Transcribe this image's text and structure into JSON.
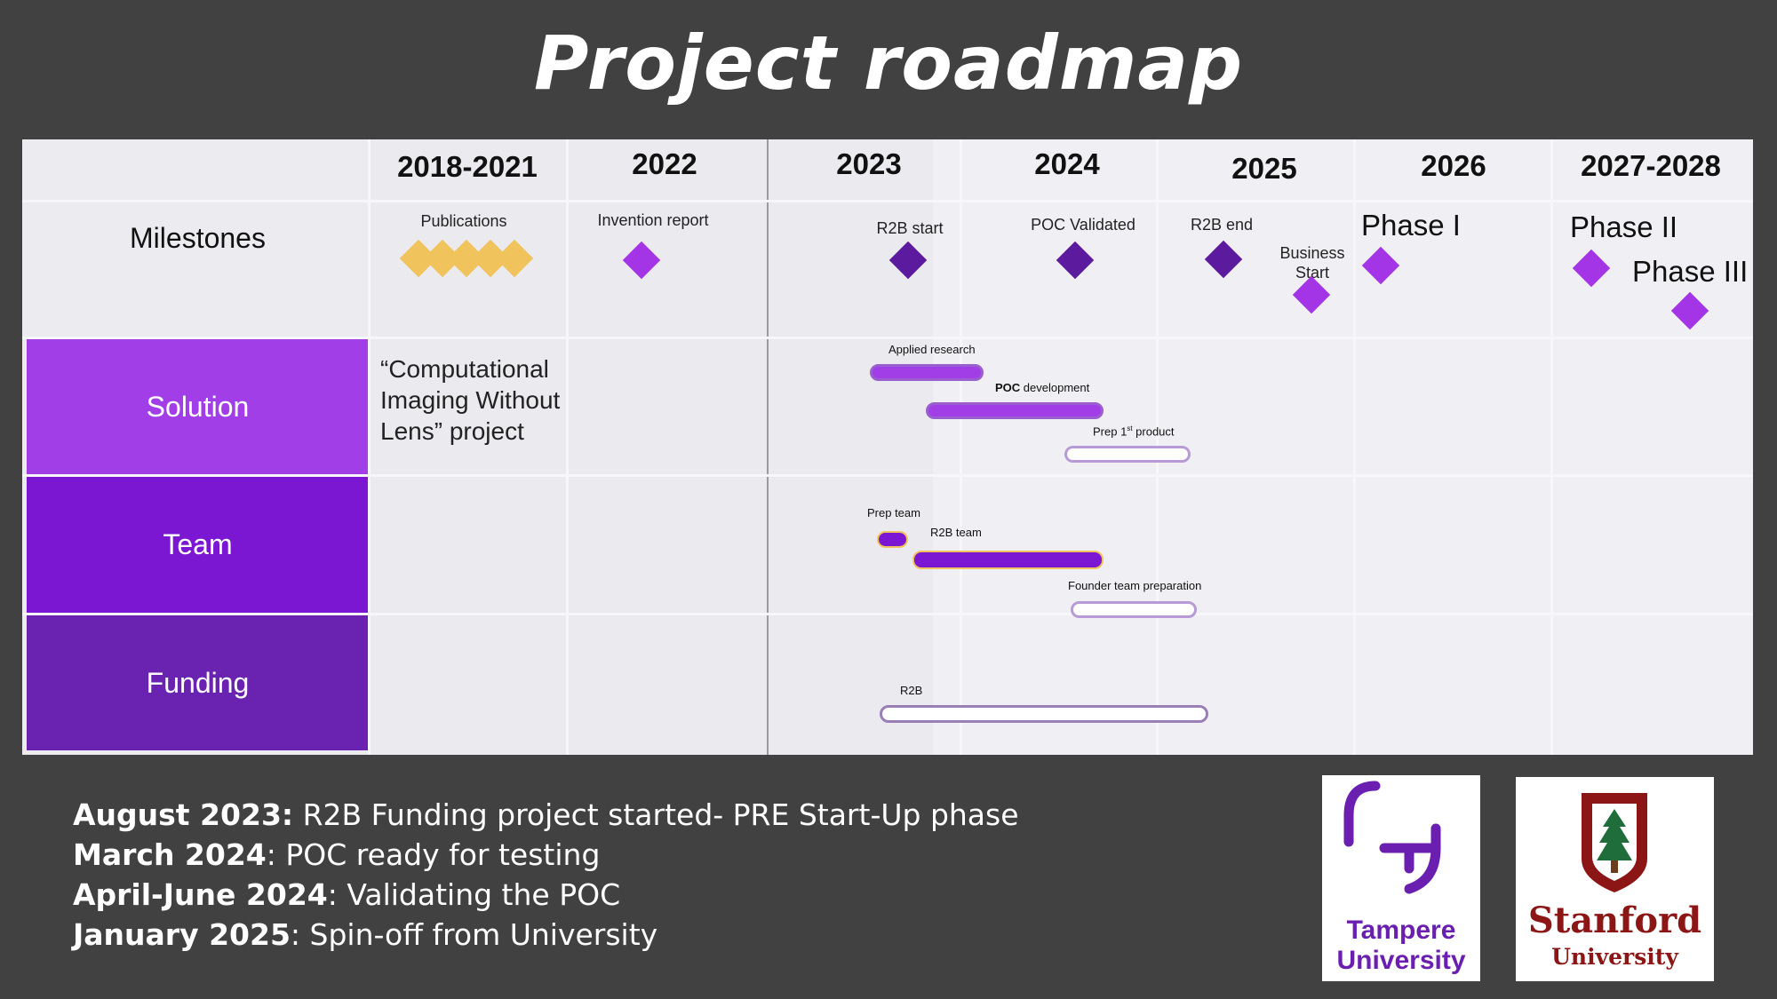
{
  "title": "Project roadmap",
  "columns": [
    "2018-2021",
    "2022",
    "2023",
    "2024",
    "2025",
    "2026",
    "2027-2028"
  ],
  "rows": [
    "Milestones",
    "Solution",
    "Team",
    "Funding"
  ],
  "milestones": {
    "publications": "Publications",
    "invention_report": "Invention report",
    "r2b_start": "R2B start",
    "poc_validated": "POC Validated",
    "r2b_end": "R2B end",
    "business_start": "Business Start",
    "phase1": "Phase I",
    "phase2": "Phase II",
    "phase3": "Phase III"
  },
  "solution": {
    "project_note": "“Computational Imaging Without Lens” project",
    "applied_research": "Applied research",
    "poc_bold": "POC",
    "poc_rest": " development",
    "prep_first": "Prep 1",
    "prep_first_sup": "st",
    "prep_first_rest": " product"
  },
  "team": {
    "prep_team": "Prep team",
    "r2b_team": "R2B team",
    "founder_team": "Founder team preparation"
  },
  "funding": {
    "r2b": "R2B"
  },
  "notes": [
    {
      "bold": "August 2023:",
      "text": " R2B Funding project started- PRE Start-Up phase"
    },
    {
      "bold": "March 2024",
      "text": ": POC ready for testing"
    },
    {
      "bold": "April-June 2024",
      "text": ": Validating the POC"
    },
    {
      "bold": "January 2025",
      "text": ": Spin-off from University"
    }
  ],
  "logos": {
    "tampere_line1": "Tampere",
    "tampere_line2": "University",
    "stanford_line1": "Stanford",
    "stanford_line2": "University"
  },
  "colors": {
    "solution": "#a23ee8",
    "team": "#7b16d3",
    "funding": "#6a22b0",
    "gold_diamond": "#f0c35c",
    "violet_diamond": "#a435e6",
    "dark_diamond": "#5c1a9e"
  }
}
